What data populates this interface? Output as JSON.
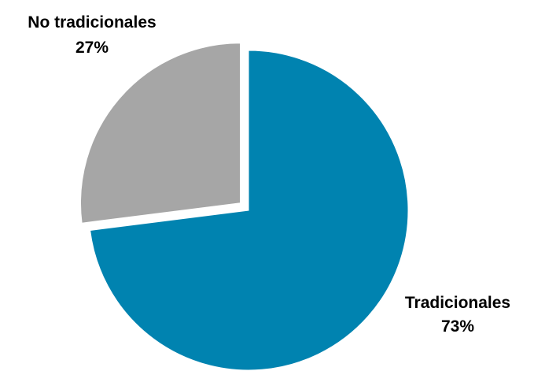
{
  "chart_data": {
    "type": "pie",
    "title": "",
    "slices": [
      {
        "label": "Tradicionales",
        "value": 73,
        "value_label": "73%",
        "color": "#0083B0"
      },
      {
        "label": "No tradicionales",
        "value": 27,
        "value_label": "27%",
        "color": "#A6A6A6"
      }
    ],
    "start_angle_deg": 0,
    "direction": "clockwise",
    "exploded": [
      "No tradicionales"
    ],
    "legend": "none"
  }
}
